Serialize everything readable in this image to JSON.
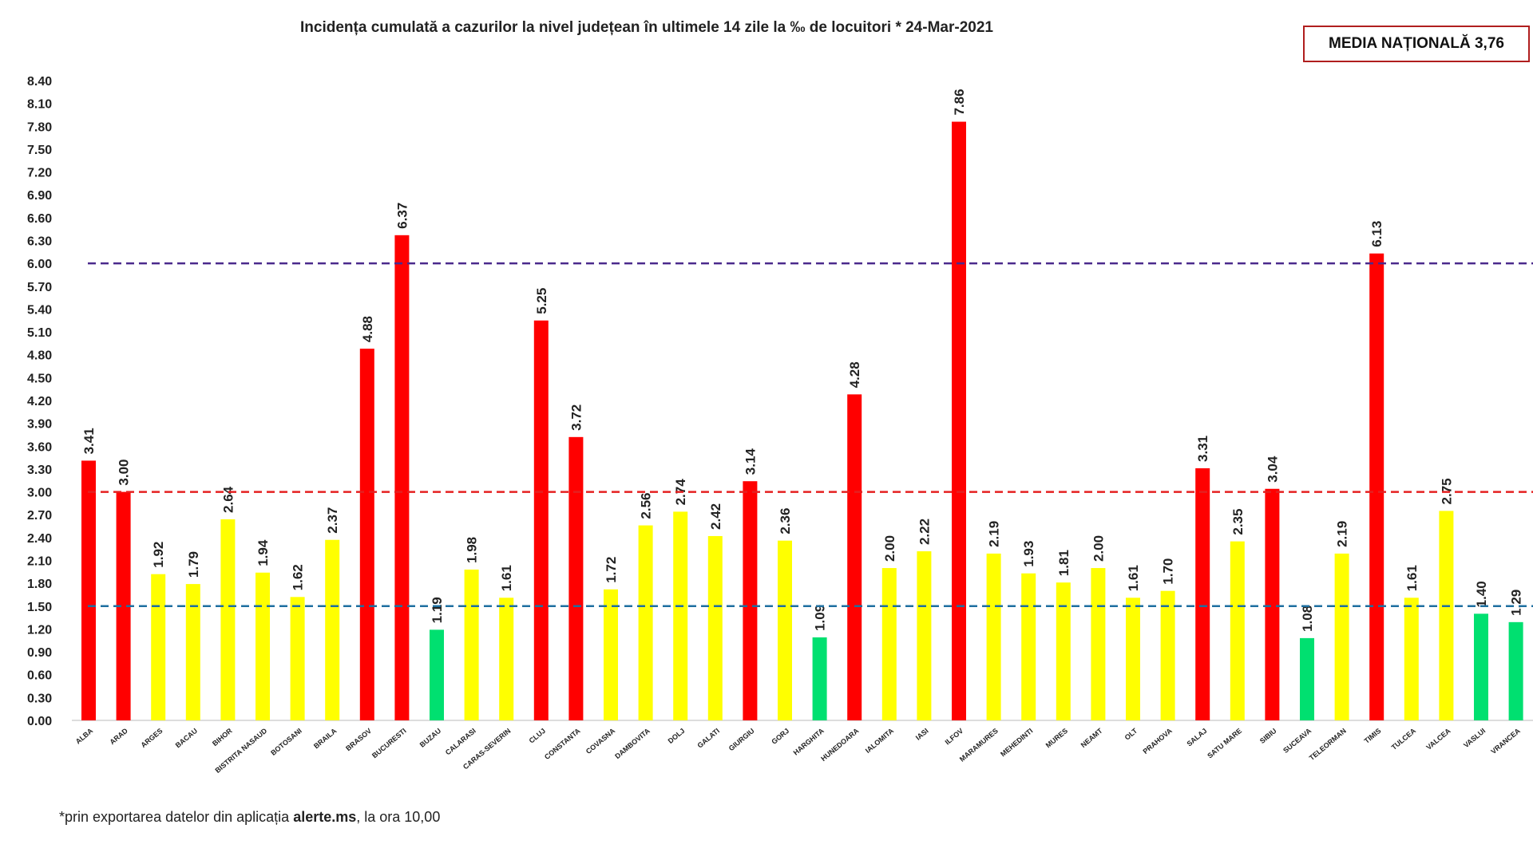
{
  "chart_data": {
    "type": "bar",
    "title": "Incidența cumulată a cazurilor la nivel județean în ultimele 14 zile la ‰ de locuitori *  24-Mar-2021",
    "xlabel": "",
    "ylabel": "",
    "ylim": [
      0,
      8.4
    ],
    "yticks": [
      "0.00",
      "0.30",
      "0.60",
      "0.90",
      "1.20",
      "1.50",
      "1.80",
      "2.10",
      "2.40",
      "2.70",
      "3.00",
      "3.30",
      "3.60",
      "3.90",
      "4.20",
      "4.50",
      "4.80",
      "5.10",
      "5.40",
      "5.70",
      "6.00",
      "6.30",
      "6.60",
      "6.90",
      "7.20",
      "7.50",
      "7.80",
      "8.10",
      "8.40"
    ],
    "categories": [
      "ALBA",
      "ARAD",
      "ARGES",
      "BACAU",
      "BIHOR",
      "BISTRITA NASAUD",
      "BOTOSANI",
      "BRAILA",
      "BRASOV",
      "BUCURESTI",
      "BUZAU",
      "CALARASI",
      "CARAS-SEVERIN",
      "CLUJ",
      "CONSTANTA",
      "COVASNA",
      "DAMBOVITA",
      "DOLJ",
      "GALATI",
      "GIURGIU",
      "GORJ",
      "HARGHITA",
      "HUNEDOARA",
      "IALOMITA",
      "IASI",
      "ILFOV",
      "MARAMURES",
      "MEHEDINTI",
      "MURES",
      "NEAMT",
      "OLT",
      "PRAHOVA",
      "SALAJ",
      "SATU MARE",
      "SIBIU",
      "SUCEAVA",
      "TELEORMAN",
      "TIMIS",
      "TULCEA",
      "VALCEA",
      "VASLUI",
      "VRANCEA"
    ],
    "values": [
      3.41,
      3.0,
      1.92,
      1.79,
      2.64,
      1.94,
      1.62,
      2.37,
      4.88,
      6.37,
      1.19,
      1.98,
      1.61,
      5.25,
      3.72,
      1.72,
      2.56,
      2.74,
      2.42,
      3.14,
      2.36,
      1.09,
      4.28,
      2.0,
      2.22,
      7.86,
      2.19,
      1.93,
      1.81,
      2.0,
      1.61,
      1.7,
      3.31,
      2.35,
      3.04,
      1.08,
      2.19,
      6.13,
      1.61,
      2.75,
      1.4,
      1.29
    ],
    "value_labels": [
      "3.41",
      "3.00",
      "1.92",
      "1.79",
      "2.64",
      "1.94",
      "1.62",
      "2.37",
      "4.88",
      "6.37",
      "1.19",
      "1.98",
      "1.61",
      "5.25",
      "3.72",
      "1.72",
      "2.56",
      "2.74",
      "2.42",
      "3.14",
      "2.36",
      "1.09",
      "4.28",
      "2.00",
      "2.22",
      "7.86",
      "2.19",
      "1.93",
      "1.81",
      "2.00",
      "1.61",
      "1.70",
      "3.31",
      "2.35",
      "3.04",
      "1.08",
      "2.19",
      "6.13",
      "1.61",
      "2.75",
      "1.40",
      "1.29"
    ],
    "thresholds": [
      {
        "value": 6.0,
        "color": "#4b2a8c"
      },
      {
        "value": 3.0,
        "color": "#e52020"
      },
      {
        "value": 1.5,
        "color": "#1e6fa0"
      }
    ],
    "colors": {
      "red": "#ff0000",
      "yellow": "#ffff00",
      "green": "#00e070"
    },
    "grid": false,
    "legend": "none"
  },
  "media_nationala": "MEDIA NAȚIONALĂ 3,76",
  "footnote": {
    "prefix": "*prin exportarea datelor din aplicația ",
    "bold": "alerte.ms",
    "suffix": ", la ora 10,00"
  }
}
